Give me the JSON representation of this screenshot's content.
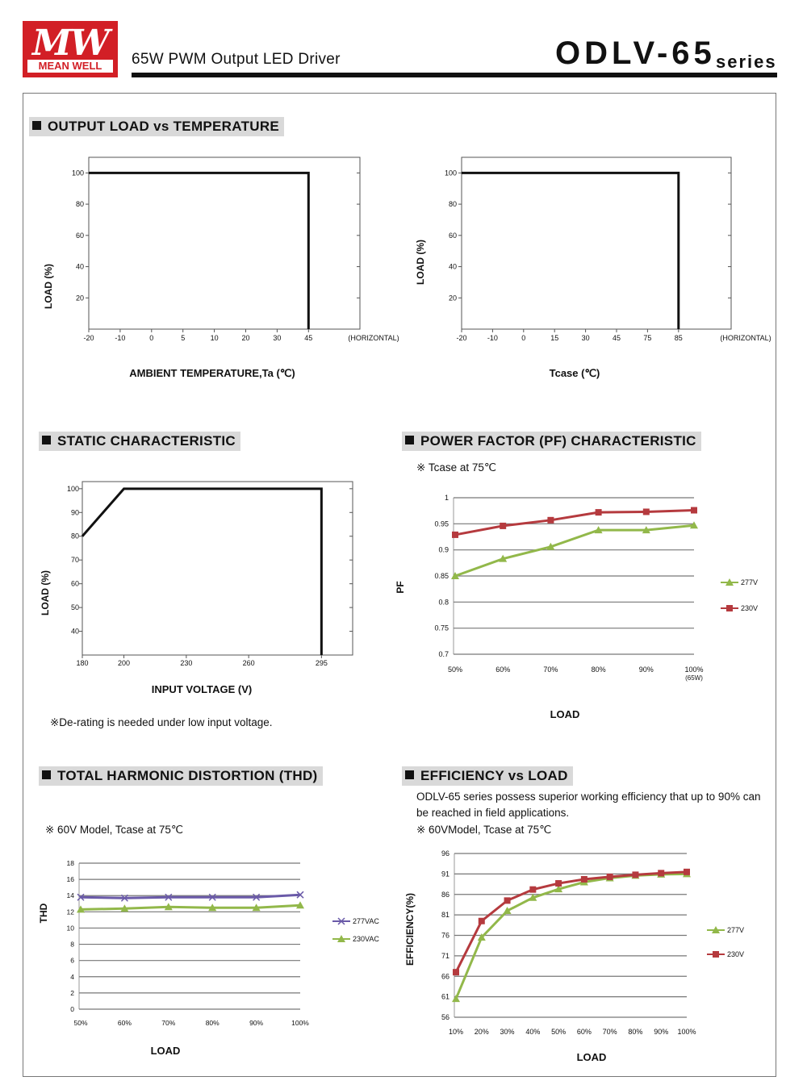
{
  "header": {
    "logo_text": "MEAN WELL",
    "subtitle": "65W PWM Output LED Driver",
    "model": "ODLV-65",
    "series": "series"
  },
  "sections": {
    "derating": "OUTPUT LOAD vs TEMPERATURE",
    "static": "STATIC CHARACTERISTIC",
    "pf": "POWER FACTOR (PF) CHARACTERISTIC",
    "thd": "TOTAL HARMONIC DISTORTION (THD)",
    "eff": "EFFICIENCY vs LOAD"
  },
  "notes": {
    "pf_tcase": "※ Tcase at 75℃",
    "derating_note": "※De-rating is needed under low input voltage.",
    "thd_model": "※ 60V Model, Tcase at 75℃",
    "eff_desc_1": "ODLV-65 series possess superior working efficiency that up to 90% can",
    "eff_desc_2": "be reached in field applications.",
    "eff_model": "※ 60VModel, Tcase at 75℃"
  },
  "colors": {
    "red": "#b53a3e",
    "green": "#92b84a",
    "purple": "#6a5aa8",
    "grid": "#888888"
  },
  "chart_data": [
    {
      "id": "temp_derating",
      "type": "line",
      "xlabel": "AMBIENT TEMPERATURE,Ta (℃)",
      "ylabel": "LOAD (%)",
      "x_ticks": [
        "-20",
        "-10",
        "0",
        "5",
        "10",
        "20",
        "30",
        "45",
        "(HORIZONTAL)"
      ],
      "y_ticks": [
        "20",
        "40",
        "60",
        "80",
        "100"
      ],
      "ylim": [
        0,
        110
      ],
      "series": [
        {
          "x": [
            "-20",
            "45",
            "45"
          ],
          "values": [
            100,
            100,
            0
          ]
        }
      ]
    },
    {
      "id": "tcase_derating",
      "type": "line",
      "xlabel": "Tcase (℃)",
      "ylabel": "LOAD (%)",
      "x_ticks": [
        "-20",
        "-10",
        "0",
        "15",
        "30",
        "45",
        "75",
        "85",
        "(HORIZONTAL)"
      ],
      "y_ticks": [
        "20",
        "40",
        "60",
        "80",
        "100"
      ],
      "ylim": [
        0,
        110
      ],
      "series": [
        {
          "x": [
            "-20",
            "85",
            "85"
          ],
          "values": [
            100,
            100,
            0
          ]
        }
      ]
    },
    {
      "id": "static",
      "type": "line",
      "xlabel": "INPUT VOLTAGE (V)",
      "ylabel": "LOAD (%)",
      "x_ticks": [
        180,
        200,
        230,
        260,
        295
      ],
      "y_ticks": [
        40,
        50,
        60,
        70,
        80,
        90,
        100
      ],
      "xlim": [
        180,
        310
      ],
      "ylim": [
        30,
        103
      ],
      "series": [
        {
          "x": [
            180,
            200,
            295,
            295
          ],
          "values": [
            80,
            100,
            100,
            30
          ]
        }
      ]
    },
    {
      "id": "pf",
      "type": "line",
      "xlabel": "LOAD",
      "ylabel": "PF",
      "categories": [
        "50%",
        "60%",
        "70%",
        "80%",
        "90%",
        "100%"
      ],
      "category_sub": "(65W)",
      "y_ticks": [
        "0.7",
        "0.75",
        "0.8",
        "0.85",
        "0.9",
        "0.95",
        "1"
      ],
      "ylim": [
        0.7,
        1.0
      ],
      "series": [
        {
          "name": "277V",
          "color": "green",
          "marker": "triangle",
          "values": [
            0.85,
            0.883,
            0.906,
            0.938,
            0.938,
            0.947
          ]
        },
        {
          "name": "230V",
          "color": "red",
          "marker": "square",
          "values": [
            0.929,
            0.946,
            0.957,
            0.972,
            0.973,
            0.976
          ]
        }
      ],
      "legend": "right"
    },
    {
      "id": "thd",
      "type": "line",
      "xlabel": "LOAD",
      "ylabel": "THD",
      "categories": [
        "50%",
        "60%",
        "70%",
        "80%",
        "90%",
        "100%"
      ],
      "y_ticks": [
        0,
        2,
        4,
        6,
        8,
        10,
        12,
        14,
        16,
        18
      ],
      "ylim": [
        0,
        18
      ],
      "series": [
        {
          "name": "277VAC",
          "color": "purple",
          "marker": "x",
          "values": [
            13.8,
            13.7,
            13.8,
            13.8,
            13.8,
            14.1
          ]
        },
        {
          "name": "230VAC",
          "color": "green",
          "marker": "triangle",
          "values": [
            12.3,
            12.4,
            12.6,
            12.5,
            12.5,
            12.8
          ]
        }
      ],
      "legend": "right"
    },
    {
      "id": "efficiency",
      "type": "line",
      "xlabel": "LOAD",
      "ylabel": "EFFICIENCY(%)",
      "categories": [
        "10%",
        "20%",
        "30%",
        "40%",
        "50%",
        "60%",
        "70%",
        "80%",
        "90%",
        "100%"
      ],
      "y_ticks": [
        56,
        61,
        66,
        71,
        76,
        81,
        86,
        91,
        96
      ],
      "ylim": [
        56,
        96
      ],
      "series": [
        {
          "name": "277V",
          "color": "green",
          "marker": "triangle",
          "values": [
            60.5,
            75.5,
            82,
            85.2,
            87.3,
            89,
            90,
            90.6,
            90.9,
            91
          ]
        },
        {
          "name": "230V",
          "color": "red",
          "marker": "square",
          "values": [
            67,
            79.5,
            84.5,
            87.2,
            88.7,
            89.7,
            90.3,
            90.8,
            91.2,
            91.5
          ]
        }
      ],
      "legend": "right"
    }
  ]
}
